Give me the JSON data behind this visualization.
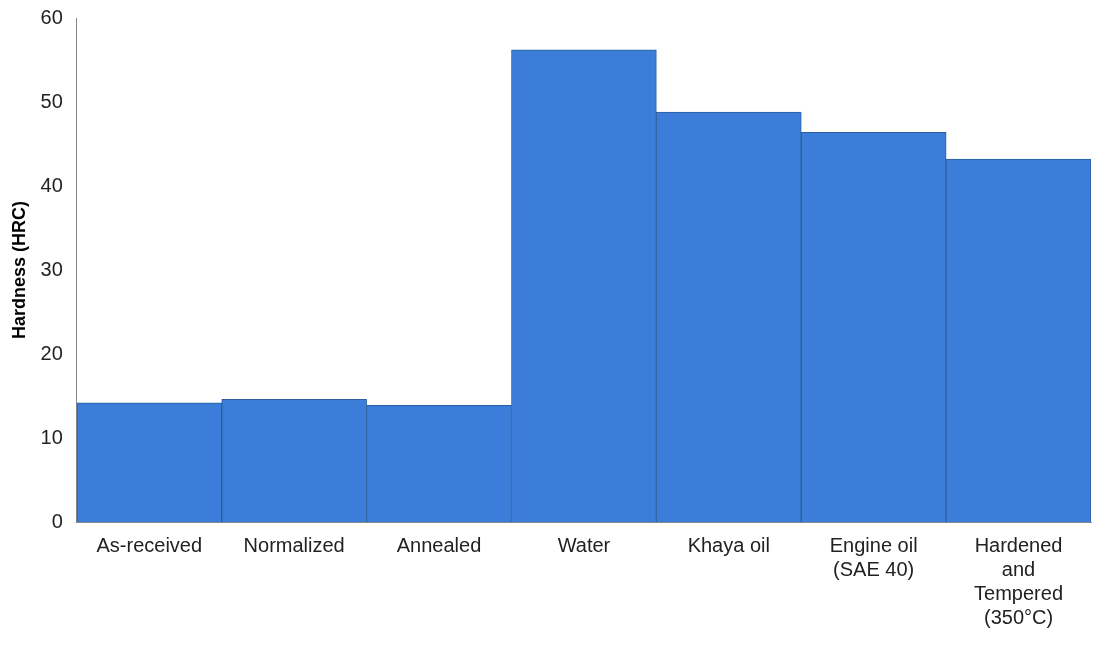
{
  "chart_data": {
    "type": "bar",
    "ylabel": "Hardness (HRC)",
    "categories": [
      "As-received",
      "Normalized",
      "Annealed",
      "Water",
      "Khaya oil",
      "Engine oil\n(SAE 40)",
      "Hardened\nand\nTempered\n(350°C)"
    ],
    "values": [
      14.2,
      14.6,
      13.9,
      56.2,
      48.8,
      46.4,
      43.2
    ],
    "color": "#3b7dd8",
    "ylim": [
      0,
      60
    ],
    "yticks": [
      0,
      10,
      20,
      30,
      40,
      50,
      60
    ],
    "grid": false,
    "legend": false
  }
}
